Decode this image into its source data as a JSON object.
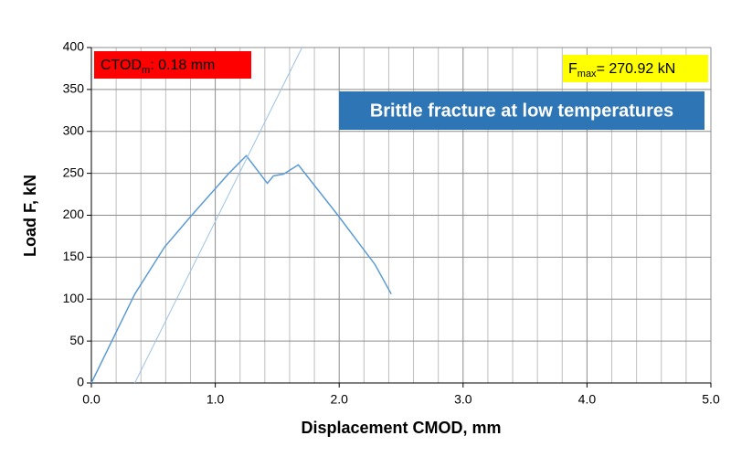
{
  "chart_data": {
    "type": "line",
    "xlabel": "Displacement CMOD, mm",
    "ylabel": "Load F, kN",
    "xlim": [
      0,
      5.0
    ],
    "ylim": [
      0,
      400
    ],
    "xticks": [
      {
        "value": 0,
        "label": "0.0"
      },
      {
        "value": 1,
        "label": "1.0"
      },
      {
        "value": 2,
        "label": "2.0"
      },
      {
        "value": 3,
        "label": "3.0"
      },
      {
        "value": 4,
        "label": "4.0"
      },
      {
        "value": 5,
        "label": "5.0"
      }
    ],
    "yticks": [
      0,
      50,
      100,
      150,
      200,
      250,
      300,
      350,
      400
    ],
    "xgrid": [
      0.2,
      0.4,
      0.6,
      0.8,
      1.2,
      1.4,
      1.6,
      1.8,
      2.2,
      2.4,
      2.6,
      2.8,
      3.2,
      3.4,
      3.6,
      3.8,
      4.2,
      4.4,
      4.6,
      4.8
    ],
    "grid": true,
    "series": [
      {
        "color": "#5b9bd5",
        "width": 1.5,
        "x": [
          0,
          0.35,
          0.59,
          0.81,
          1.11,
          1.25,
          1.42,
          1.47,
          1.55,
          1.67,
          1.99,
          2.29,
          2.42
        ],
        "values": [
          0,
          106,
          162,
          200,
          250,
          271,
          238,
          247,
          249,
          260,
          200,
          141,
          106
        ]
      },
      {
        "color": "#9dc3e6",
        "width": 1,
        "x": [
          0.35,
          1.7
        ],
        "values": [
          0,
          400
        ]
      }
    ],
    "annotations": [
      {
        "text": "CTOD",
        "sub": "m",
        "rest": ":  0.18 mm",
        "color": "#ff0000"
      },
      {
        "text": "F",
        "sub": "max",
        "rest": "= 270.92 kN",
        "color": "#ffff00"
      },
      {
        "text": "Brittle fracture at low temperatures",
        "color": "#2e75b6"
      }
    ]
  }
}
